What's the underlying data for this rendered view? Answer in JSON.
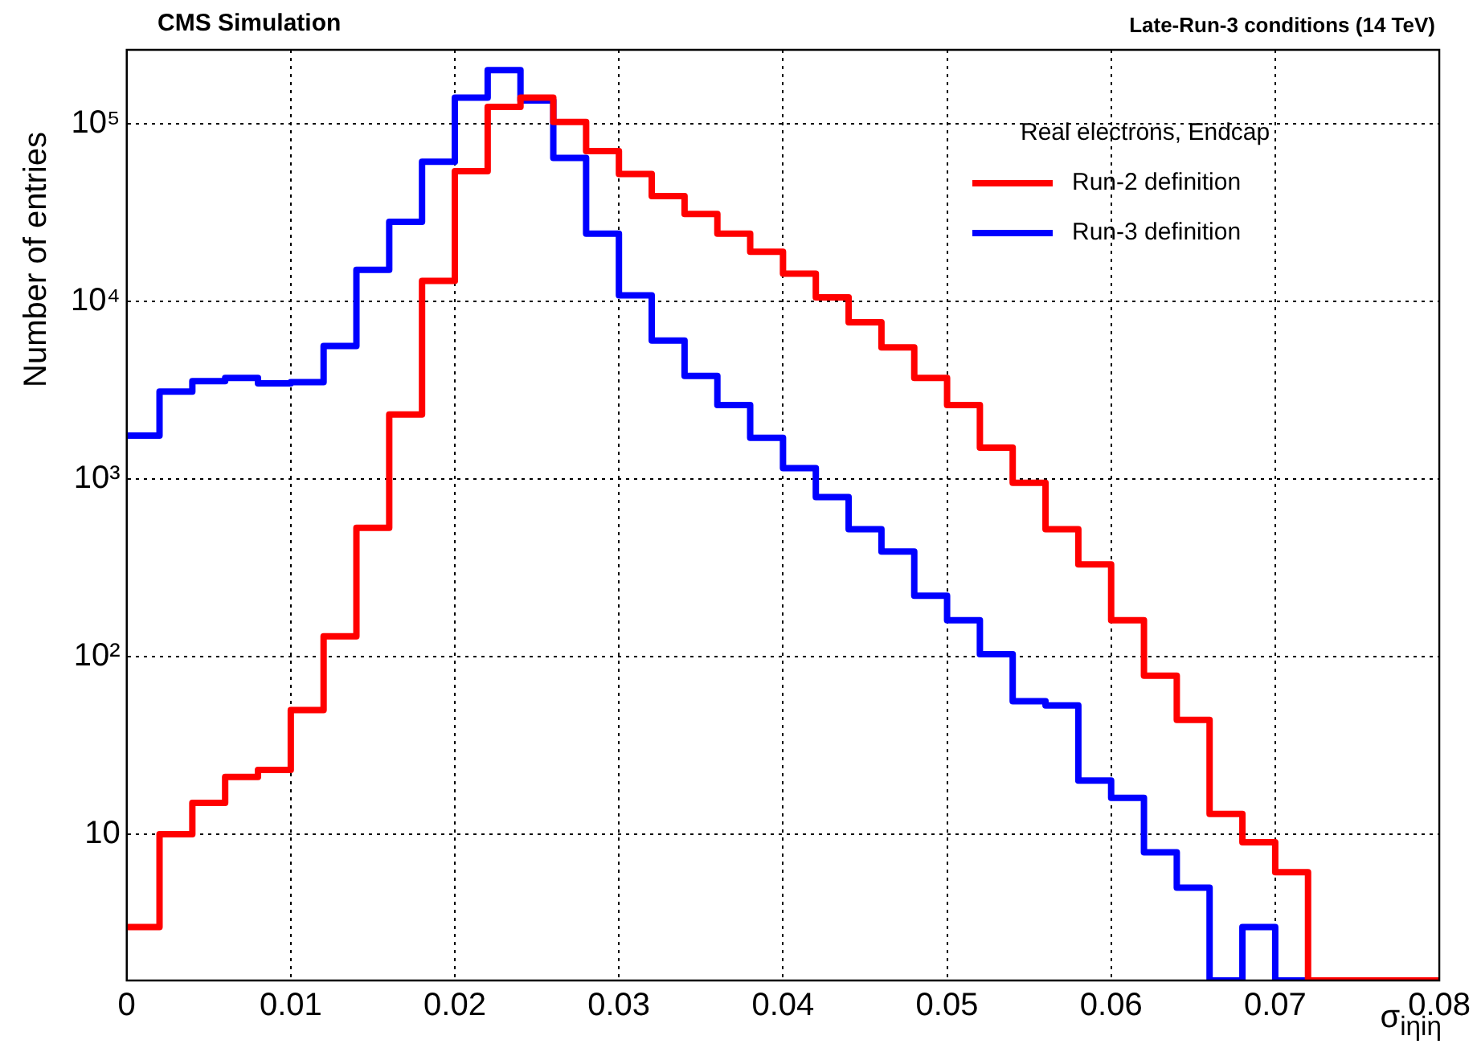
{
  "chart_data": {
    "type": "histogram",
    "title": "CMS Simulation",
    "subtitle": "Late-Run-3 conditions (14 TeV)",
    "xlabel": "σ$_{iηiη}$",
    "ylabel": "Number of entries",
    "legend_title": "Real electrons, Endcap",
    "bins": [
      0,
      0.002,
      0.004,
      0.006,
      0.008,
      0.01,
      0.012,
      0.014,
      0.016,
      0.018,
      0.02,
      0.022,
      0.024,
      0.026,
      0.028,
      0.03,
      0.032,
      0.034,
      0.036,
      0.038,
      0.04,
      0.042,
      0.044,
      0.046,
      0.048,
      0.05,
      0.052,
      0.054,
      0.056,
      0.058,
      0.06,
      0.062,
      0.064,
      0.066,
      0.068,
      0.07,
      0.072,
      0.074,
      0.076,
      0.078,
      0.08
    ],
    "series": [
      {
        "name": "Run-2 definition",
        "color": "#ff0000",
        "values": [
          3.0,
          10,
          15,
          21,
          23,
          50,
          130,
          530,
          2300,
          13000,
          54000,
          124000,
          140000,
          102000,
          70000,
          52000,
          39000,
          31000,
          24000,
          19000,
          14300,
          10500,
          7600,
          5500,
          3700,
          2600,
          1500,
          950,
          520,
          330,
          160,
          78,
          44,
          13,
          9,
          6.1,
          null,
          null,
          null,
          null
        ]
      },
      {
        "name": "Run-3 definition",
        "color": "#0000ff",
        "values": [
          1750,
          3100,
          3550,
          3700,
          3450,
          3500,
          5600,
          15000,
          28000,
          61000,
          140000,
          200000,
          135000,
          64000,
          24000,
          10800,
          6000,
          3800,
          2600,
          1700,
          1150,
          790,
          520,
          390,
          220,
          160,
          103,
          56,
          53,
          20,
          16,
          7.9,
          5.0,
          null,
          3.0,
          null,
          null,
          null,
          null,
          null
        ]
      }
    ],
    "log": "y",
    "xlim": [
      0,
      0.08
    ],
    "ylim": [
      1.5,
      260000
    ],
    "xticks": [
      0,
      0.01,
      0.02,
      0.03,
      0.04,
      0.05,
      0.06,
      0.07,
      0.08
    ],
    "yticks": [
      10,
      {
        "value": 100,
        "label": "10²"
      },
      {
        "value": 1000,
        "label": "10³"
      },
      {
        "value": 10000,
        "label": "10⁴"
      },
      {
        "value": 100000,
        "label": "10⁵"
      }
    ],
    "grid": true,
    "legend": "top right",
    "line_style": "solid",
    "marker": "none"
  }
}
